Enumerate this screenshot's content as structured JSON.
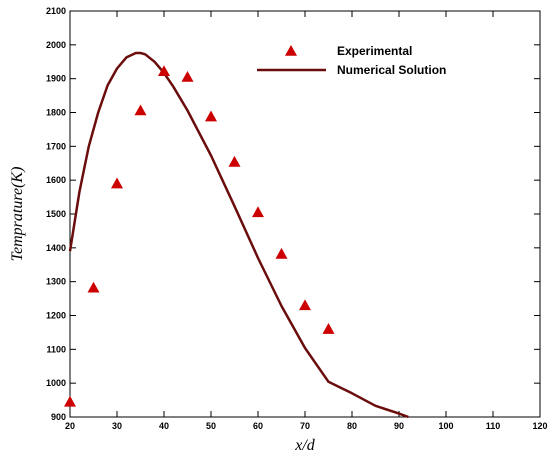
{
  "chart_data": {
    "type": "scatter",
    "xlabel": "x/d",
    "ylabel": "Temprature(K)",
    "xlim": [
      20,
      120
    ],
    "ylim": [
      900,
      2100
    ],
    "xticks": [
      20,
      30,
      40,
      50,
      60,
      70,
      80,
      90,
      100,
      110,
      120
    ],
    "yticks": [
      900,
      1000,
      1100,
      1200,
      1300,
      1400,
      1500,
      1600,
      1700,
      1800,
      1900,
      2000,
      2100
    ],
    "grid": false,
    "legend_position": "top-right",
    "colors": {
      "experimental": "#cc0000",
      "numerical": "#6b0d0d"
    },
    "series": [
      {
        "name": "Experimental",
        "kind": "markers",
        "marker": "triangle",
        "x": [
          20,
          25,
          30,
          35,
          40,
          45,
          50,
          55,
          60,
          65,
          70,
          75
        ],
        "y": [
          945,
          1282,
          1590,
          1806,
          1922,
          1905,
          1788,
          1654,
          1505,
          1382,
          1230,
          1160
        ]
      },
      {
        "name": "Numerical Solution",
        "kind": "line",
        "x": [
          20,
          22,
          24,
          26,
          28,
          30,
          32,
          34,
          35,
          36,
          38,
          40,
          42,
          45,
          50,
          55,
          60,
          65,
          70,
          75,
          80,
          85,
          90,
          92
        ],
        "y": [
          1390,
          1565,
          1700,
          1800,
          1880,
          1930,
          1963,
          1976,
          1976,
          1972,
          1950,
          1917,
          1876,
          1806,
          1673,
          1523,
          1370,
          1228,
          1104,
          1004,
          970,
          933,
          910,
          900
        ]
      }
    ]
  }
}
